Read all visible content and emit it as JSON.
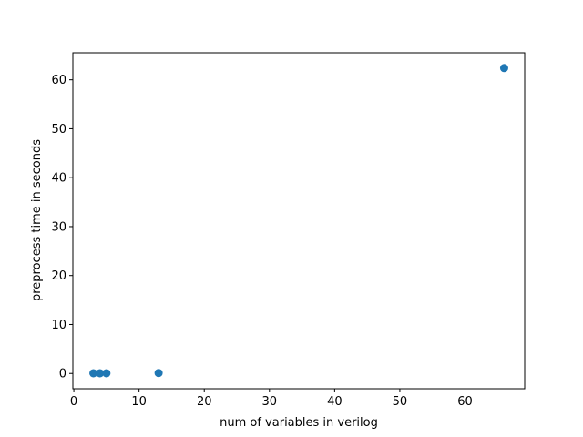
{
  "chart_data": {
    "type": "scatter",
    "title": "",
    "xlabel": "num of variables in verilog",
    "ylabel": "preprocess time in seconds",
    "xlim": [
      -0.15,
      69.15
    ],
    "ylim": [
      -3.12,
      65.52
    ],
    "xticks": [
      0,
      10,
      20,
      30,
      40,
      50,
      60
    ],
    "yticks": [
      0,
      10,
      20,
      30,
      40,
      50,
      60
    ],
    "grid": false,
    "marker_color": "#1f77b4",
    "series": [
      {
        "points": [
          {
            "x": 3,
            "y": 0.05
          },
          {
            "x": 4,
            "y": 0.05
          },
          {
            "x": 5,
            "y": 0.05
          },
          {
            "x": 13,
            "y": 0.1
          },
          {
            "x": 66,
            "y": 62.4
          }
        ]
      }
    ]
  }
}
